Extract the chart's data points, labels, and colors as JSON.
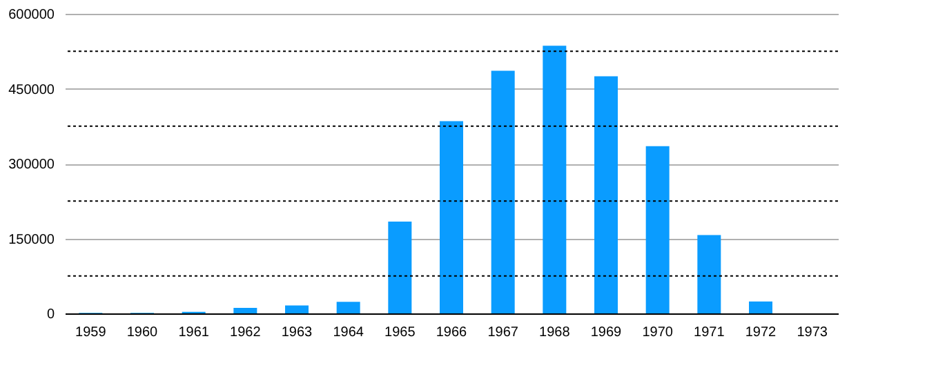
{
  "chart_data": {
    "type": "bar",
    "categories": [
      "1959",
      "1960",
      "1961",
      "1962",
      "1963",
      "1964",
      "1965",
      "1966",
      "1967",
      "1968",
      "1969",
      "1970",
      "1971",
      "1972",
      "1973"
    ],
    "values": [
      1000,
      1000,
      3000,
      11000,
      16000,
      23000,
      184000,
      385000,
      486000,
      536000,
      475000,
      335000,
      157000,
      24000,
      0
    ],
    "color": "#0a9cff",
    "ylim": [
      0,
      600000
    ],
    "yticks": [
      0,
      150000,
      300000,
      450000,
      600000
    ],
    "grid": "y",
    "ref_lines": [
      {
        "axis": "y",
        "value": 75000,
        "line_style": "dotted",
        "color": "#000000"
      },
      {
        "axis": "y",
        "value": 225000,
        "line_style": "dotted",
        "color": "#000000"
      },
      {
        "axis": "y",
        "value": 375000,
        "line_style": "dotted",
        "color": "#000000"
      },
      {
        "axis": "y",
        "value": 525000,
        "line_style": "dotted",
        "color": "#000000"
      }
    ]
  }
}
